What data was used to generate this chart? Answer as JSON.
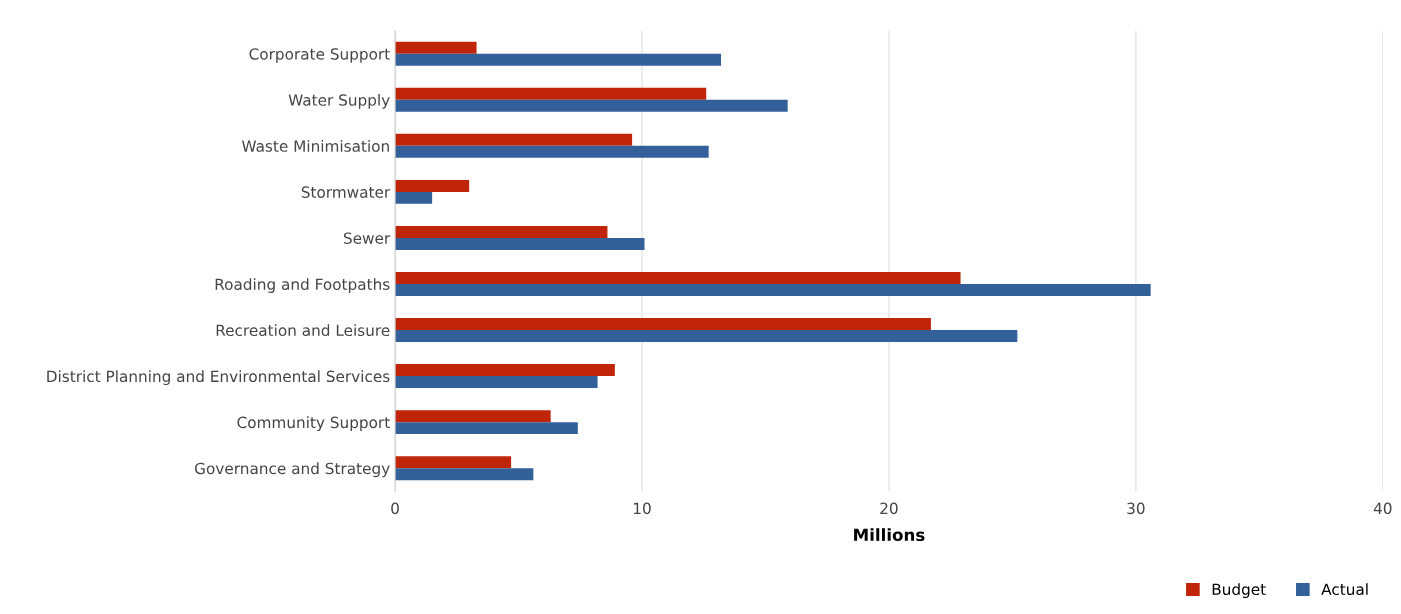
{
  "chart_data": {
    "type": "bar",
    "orientation": "horizontal",
    "xlabel": "Millions",
    "categories": [
      "Corporate Support",
      "Water Supply",
      "Waste Minimisation",
      "Stormwater",
      "Sewer",
      "Roading and Footpaths",
      "Recreation and Leisure",
      "District Planning and Environmental Services",
      "Community Support",
      "Governance and Strategy"
    ],
    "series": [
      {
        "name": "Budget",
        "color": "#c0250a",
        "values": [
          3.3,
          12.6,
          9.6,
          3.0,
          8.6,
          22.9,
          21.7,
          8.9,
          6.3,
          4.7
        ]
      },
      {
        "name": "Actual",
        "color": "#336099",
        "values": [
          13.2,
          15.9,
          12.7,
          1.5,
          10.1,
          30.6,
          25.2,
          8.2,
          7.4,
          5.6
        ]
      }
    ],
    "xlim": [
      0,
      40
    ],
    "xticks": [
      0,
      10,
      20,
      30,
      40
    ],
    "grid": "x",
    "legend": "bottom right"
  }
}
